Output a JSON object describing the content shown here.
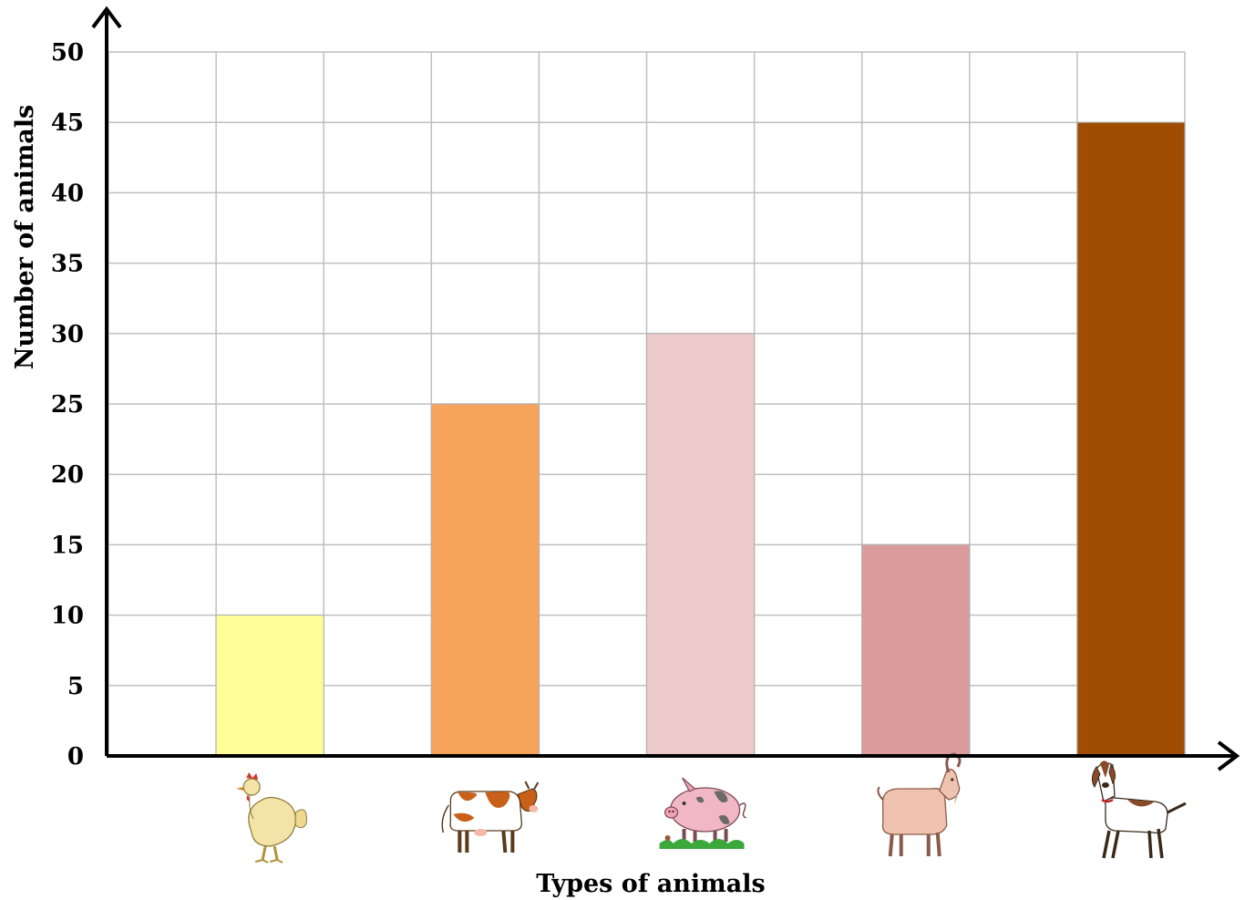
{
  "chart_data": {
    "type": "bar",
    "title": "",
    "xlabel": "Types of animals",
    "ylabel": "Number of animals",
    "ylim": [
      0,
      50
    ],
    "y_ticks": [
      "0",
      "5",
      "10",
      "15",
      "20",
      "25",
      "30",
      "35",
      "40",
      "45",
      "50"
    ],
    "grid": true,
    "categories": [
      "chicken",
      "cow",
      "pig",
      "goat",
      "dog"
    ],
    "category_labels_shown_as": "pictures",
    "values": [
      10,
      25,
      30,
      15,
      45
    ],
    "colors": [
      "#FFFF99",
      "#F7A35C",
      "#EDCACA",
      "#DB9B9B",
      "#A04C02"
    ],
    "category_icons": [
      "chicken-icon",
      "cow-icon",
      "pig-icon",
      "goat-icon",
      "dog-icon"
    ]
  }
}
